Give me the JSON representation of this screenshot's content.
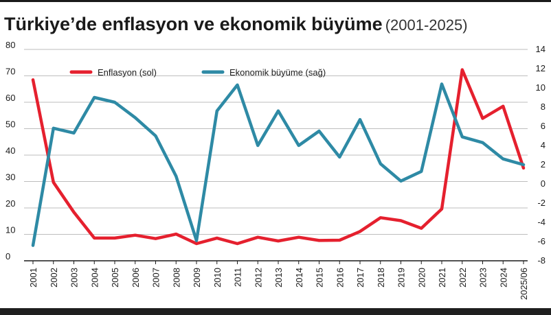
{
  "header": {
    "title": "Türkiye’de enflasyon ve ekonomik büyüme",
    "subtitle": "(2001-2025)"
  },
  "chart_data": {
    "type": "line",
    "title": "Türkiye’de enflasyon ve ekonomik büyüme",
    "subtitle": "(2001-2025)",
    "categories": [
      "2001",
      "2002",
      "2003",
      "2004",
      "2005",
      "2006",
      "2007",
      "2008",
      "2009",
      "2010",
      "2011",
      "2012",
      "2013",
      "2014",
      "2015",
      "2016",
      "2017",
      "2018",
      "2019",
      "2020",
      "2021",
      "2022",
      "2023",
      "2024",
      "2025/06"
    ],
    "y_left": {
      "ylim": [
        0,
        80
      ],
      "ticks": [
        "80",
        "70",
        "60",
        "50",
        "40",
        "30",
        "20",
        "10",
        "0"
      ]
    },
    "y_right": {
      "ylim": [
        -8,
        14
      ],
      "ticks": [
        "14",
        "12",
        "10",
        "8",
        "6",
        "4",
        "2",
        "0",
        "-2",
        "-4",
        "-6",
        "-8"
      ]
    },
    "grid": true,
    "legend": "top",
    "series": [
      {
        "name": "Enflasyon (sol)",
        "axis": "left",
        "color": "#e5202e",
        "values": [
          68.5,
          29.7,
          18.4,
          8.6,
          8.6,
          9.7,
          8.4,
          10.1,
          6.5,
          8.6,
          6.5,
          8.9,
          7.5,
          8.9,
          7.7,
          7.8,
          11.1,
          16.3,
          15.2,
          12.3,
          19.6,
          72.3,
          53.9,
          58.5,
          35.1
        ]
      },
      {
        "name": "Ekonomik büyüme (sağ)",
        "axis": "right",
        "color": "#2e8aa5",
        "values": [
          -6.4,
          5.8,
          5.3,
          9.0,
          8.5,
          6.9,
          5.0,
          0.8,
          -5.9,
          7.6,
          10.3,
          4.0,
          7.6,
          4.0,
          5.5,
          2.8,
          6.7,
          2.1,
          0.3,
          1.3,
          10.4,
          4.9,
          4.3,
          2.6,
          2.0
        ]
      }
    ]
  }
}
